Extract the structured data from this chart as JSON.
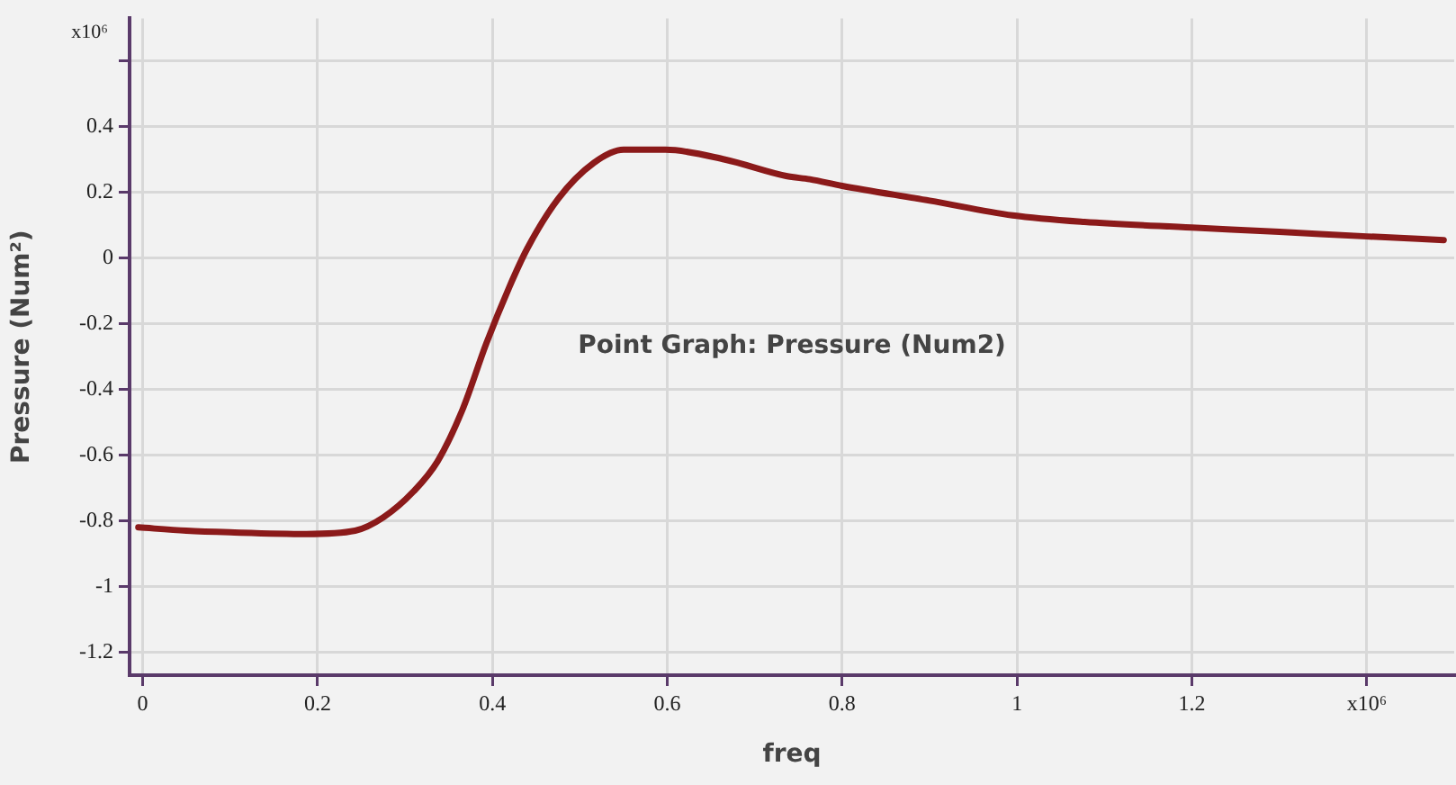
{
  "chart_data": {
    "type": "line",
    "title": "Point Graph: Pressure (Num2)",
    "xlabel": "freq",
    "ylabel": "Pressure (Num²)",
    "x": [
      -0.005,
      0.05,
      0.1,
      0.187,
      0.243,
      0.275,
      0.31,
      0.337,
      0.366,
      0.393,
      0.419,
      0.44,
      0.475,
      0.516,
      0.55,
      0.598,
      0.666,
      0.736,
      0.763,
      0.8,
      0.9,
      0.995,
      1.077,
      1.2,
      1.3,
      1.4,
      1.488
    ],
    "series": [
      {
        "color": "#8b1a1a",
        "values": [
          -0.82,
          -0.83,
          -0.835,
          -0.84,
          -0.83,
          -0.79,
          -0.71,
          -0.62,
          -0.46,
          -0.26,
          -0.09,
          0.03,
          0.18,
          0.29,
          0.33,
          0.33,
          0.3,
          0.25,
          0.24,
          0.22,
          0.175,
          0.13,
          0.11,
          0.093,
          0.08,
          0.066,
          0.055
        ]
      }
    ],
    "xlim": [
      -0.015,
      1.5
    ],
    "xticks": [
      0,
      0.2,
      0.4,
      0.6,
      0.8,
      1,
      1.2,
      {
        "value": 1.4,
        "label": "x10⁶"
      }
    ],
    "ylim": [
      -1.27,
      0.73
    ],
    "yticks": [
      -1.2,
      -1,
      -0.8,
      -0.6,
      -0.4,
      -0.2,
      0,
      0.2,
      0.4,
      {
        "value": 0.6,
        "label": null
      }
    ],
    "annotations": [
      "x10⁶"
    ],
    "grid": true,
    "legend": false,
    "marker": "none",
    "line_style": "solid"
  }
}
